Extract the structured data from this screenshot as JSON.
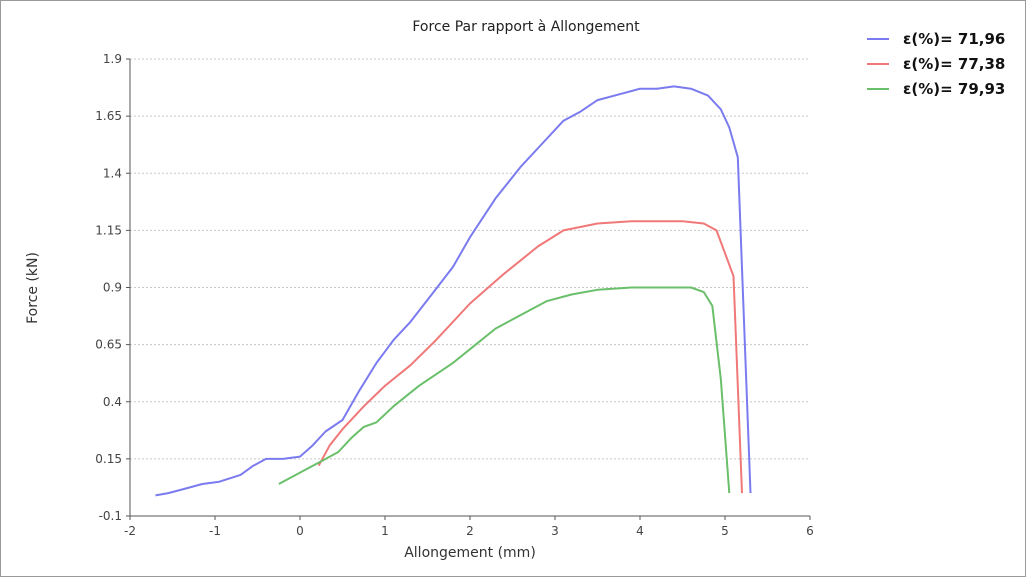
{
  "chart_data": {
    "type": "line",
    "title": "Force Par rapport à Allongement",
    "xlabel": "Allongement (mm)",
    "ylabel": "Force (kN)",
    "xlim": [
      -2,
      6
    ],
    "ylim": [
      -0.1,
      1.9
    ],
    "xticks": [
      "-2",
      "-1",
      "0",
      "1",
      "2",
      "3",
      "4",
      "5",
      "6"
    ],
    "yticks": [
      "-0.1",
      "0.15",
      "0.4",
      "0.65",
      "0.9",
      "1.15",
      "1.4",
      "1.65",
      "1.9"
    ],
    "grid": true,
    "legend_position": "top-right outside",
    "series": [
      {
        "name": "ε(%)= 71,96",
        "color": "#7b7bf0",
        "x": [
          -1.7,
          -1.55,
          -1.35,
          -1.15,
          -0.95,
          -0.7,
          -0.55,
          -0.4,
          -0.2,
          0.0,
          0.15,
          0.3,
          0.5,
          0.7,
          0.9,
          1.1,
          1.3,
          1.55,
          1.8,
          2.0,
          2.3,
          2.6,
          2.9,
          3.1,
          3.3,
          3.5,
          3.8,
          4.0,
          4.2,
          4.4,
          4.6,
          4.8,
          4.95,
          5.05,
          5.15,
          5.3
        ],
        "y": [
          -0.01,
          0.0,
          0.02,
          0.04,
          0.05,
          0.08,
          0.12,
          0.15,
          0.15,
          0.16,
          0.21,
          0.27,
          0.32,
          0.45,
          0.57,
          0.67,
          0.75,
          0.87,
          0.99,
          1.12,
          1.29,
          1.43,
          1.55,
          1.63,
          1.67,
          1.72,
          1.75,
          1.77,
          1.77,
          1.78,
          1.77,
          1.74,
          1.68,
          1.6,
          1.47,
          0.0
        ]
      },
      {
        "name": "ε(%)= 77,38",
        "color": "#f07878",
        "x": [
          0.22,
          0.35,
          0.5,
          0.75,
          1.0,
          1.3,
          1.6,
          2.0,
          2.4,
          2.8,
          3.1,
          3.5,
          3.9,
          4.2,
          4.5,
          4.75,
          4.9,
          5.0,
          5.1,
          5.2
        ],
        "y": [
          0.12,
          0.21,
          0.28,
          0.38,
          0.47,
          0.56,
          0.67,
          0.83,
          0.96,
          1.08,
          1.15,
          1.18,
          1.19,
          1.19,
          1.19,
          1.18,
          1.15,
          1.05,
          0.95,
          0.0
        ]
      },
      {
        "name": "ε(%)= 79,93",
        "color": "#6abf6a",
        "x": [
          -0.25,
          0.0,
          0.25,
          0.45,
          0.6,
          0.75,
          0.9,
          1.1,
          1.4,
          1.8,
          2.0,
          2.3,
          2.6,
          2.9,
          3.2,
          3.5,
          3.9,
          4.3,
          4.6,
          4.75,
          4.85,
          4.95,
          5.05
        ],
        "y": [
          0.04,
          0.09,
          0.14,
          0.18,
          0.24,
          0.29,
          0.31,
          0.38,
          0.47,
          0.57,
          0.63,
          0.72,
          0.78,
          0.84,
          0.87,
          0.89,
          0.9,
          0.9,
          0.9,
          0.88,
          0.82,
          0.5,
          0.0
        ]
      }
    ]
  }
}
